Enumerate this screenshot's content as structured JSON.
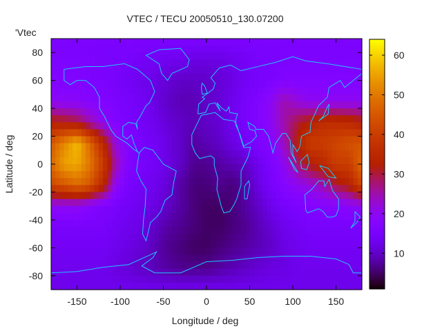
{
  "chart_data": {
    "type": "heatmap",
    "title": "VTEC / TECU 20050510_130.07200",
    "xlabel": "Longitude / deg",
    "ylabel": "Latitude / deg",
    "key_label": "'Vtec",
    "xlim": [
      -180,
      180
    ],
    "ylim": [
      -90,
      90
    ],
    "xticks": [
      -150,
      -100,
      -50,
      0,
      50,
      100,
      150
    ],
    "yticks": [
      -80,
      -60,
      -40,
      -20,
      0,
      20,
      40,
      60,
      80
    ],
    "colorbar": {
      "range": [
        1,
        64
      ],
      "ticks": [
        10,
        20,
        30,
        40,
        50,
        60
      ]
    },
    "colormap": "gnuplot-default-7-5-15",
    "coastline_color": "#1ec8ff",
    "grid_lon": [
      -180,
      -165,
      -150,
      -135,
      -120,
      -105,
      -90,
      -75,
      -60,
      -45,
      -30,
      -15,
      0,
      15,
      30,
      45,
      60,
      75,
      90,
      105,
      120,
      135,
      150,
      165,
      180
    ],
    "grid_lat": [
      90,
      75,
      60,
      45,
      30,
      15,
      0,
      -15,
      -30,
      -45,
      -60,
      -75,
      -90
    ],
    "values": [
      [
        16,
        16,
        16,
        16,
        16,
        16,
        16,
        16,
        16,
        16,
        16,
        16,
        16,
        16,
        16,
        16,
        16,
        16,
        16,
        16,
        16,
        16,
        16,
        16,
        16
      ],
      [
        16,
        16,
        16,
        16,
        15,
        15,
        15,
        14,
        14,
        13,
        13,
        12,
        12,
        12,
        13,
        14,
        15,
        15,
        16,
        16,
        16,
        16,
        16,
        16,
        16
      ],
      [
        17,
        17,
        17,
        16,
        16,
        15,
        14,
        13,
        12,
        11,
        10,
        10,
        10,
        11,
        12,
        14,
        15,
        16,
        17,
        17,
        17,
        17,
        17,
        17,
        17
      ],
      [
        20,
        19,
        19,
        18,
        17,
        16,
        15,
        14,
        12,
        10,
        9,
        9,
        10,
        11,
        13,
        15,
        17,
        20,
        25,
        22,
        20,
        20,
        20,
        20,
        20
      ],
      [
        33,
        32,
        30,
        25,
        20,
        17,
        15,
        14,
        13,
        11,
        10,
        9,
        10,
        11,
        13,
        15,
        17,
        20,
        25,
        30,
        33,
        36,
        36,
        35,
        33
      ],
      [
        45,
        52,
        58,
        48,
        35,
        22,
        17,
        15,
        14,
        12,
        10,
        8,
        9,
        10,
        12,
        14,
        16,
        18,
        24,
        33,
        40,
        40,
        42,
        44,
        45
      ],
      [
        48,
        55,
        56,
        50,
        40,
        25,
        17,
        15,
        14,
        12,
        10,
        7,
        7,
        8,
        9,
        10,
        13,
        16,
        20,
        28,
        32,
        35,
        40,
        40,
        48
      ],
      [
        42,
        45,
        48,
        45,
        35,
        20,
        15,
        14,
        13,
        11,
        8,
        6,
        6,
        7,
        6,
        8,
        12,
        15,
        18,
        20,
        22,
        25,
        30,
        33,
        42
      ],
      [
        20,
        20,
        20,
        18,
        16,
        15,
        14,
        13,
        12,
        10,
        8,
        6,
        5,
        5,
        6,
        8,
        10,
        13,
        15,
        16,
        17,
        18,
        18,
        19,
        20
      ],
      [
        15,
        15,
        15,
        15,
        15,
        14,
        13,
        12,
        10,
        8,
        7,
        6,
        5,
        5,
        6,
        7,
        9,
        11,
        13,
        14,
        15,
        15,
        15,
        15,
        15
      ],
      [
        14,
        14,
        14,
        14,
        14,
        13,
        12,
        11,
        9,
        7,
        6,
        5,
        5,
        6,
        7,
        8,
        9,
        10,
        12,
        13,
        14,
        14,
        14,
        14,
        14
      ],
      [
        13,
        13,
        13,
        13,
        13,
        12,
        11,
        10,
        9,
        8,
        7,
        7,
        7,
        8,
        9,
        10,
        11,
        12,
        12,
        13,
        13,
        13,
        13,
        13,
        13
      ],
      [
        13,
        13,
        13,
        13,
        13,
        13,
        13,
        13,
        13,
        13,
        13,
        13,
        13,
        13,
        13,
        13,
        13,
        13,
        13,
        13,
        13,
        13,
        13,
        13,
        13
      ]
    ]
  }
}
